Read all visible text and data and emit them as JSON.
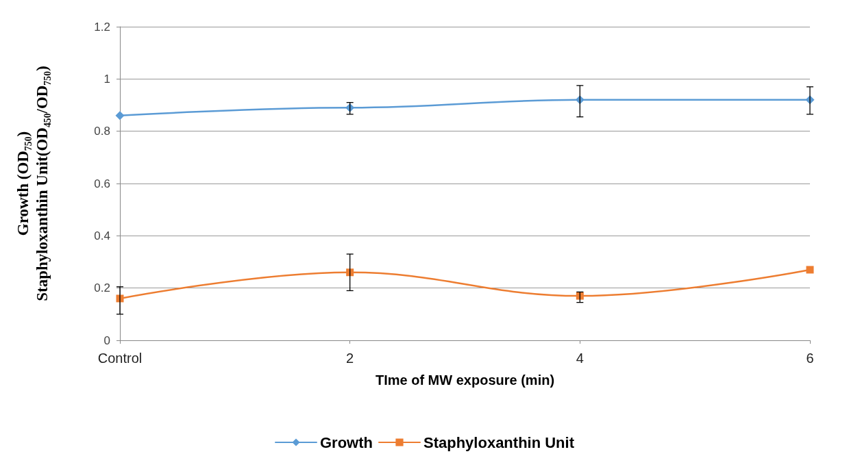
{
  "chart_data": {
    "type": "line",
    "xlabel": "TIme of MW exposure (min)",
    "ylabel": "Growth (OD₇₅₀)\nStaphyloxanthin Unit(OD₄₅₀/OD₇₅₀)",
    "categories": [
      "Control",
      "2",
      "4",
      "6"
    ],
    "series": [
      {
        "name": "Growth",
        "color": "#5b9bd5",
        "marker": "diamond",
        "values": [
          0.86,
          0.89,
          0.92,
          0.92
        ],
        "errors": [
          null,
          [
            0.865,
            0.91
          ],
          [
            0.855,
            0.975
          ],
          [
            0.865,
            0.97
          ]
        ]
      },
      {
        "name": "Staphyloxanthin Unit",
        "color": "#ed7d31",
        "marker": "square",
        "values": [
          0.16,
          0.26,
          0.17,
          0.27
        ],
        "errors": [
          [
            0.1,
            0.205
          ],
          [
            0.19,
            0.33
          ],
          [
            0.145,
            0.185
          ],
          null
        ]
      }
    ],
    "ylim": [
      0,
      1.2
    ],
    "yticks": [
      0,
      0.2,
      0.4,
      0.6,
      0.8,
      1,
      1.2
    ],
    "grid": "y",
    "legend": "bottom",
    "line_style": "solid"
  }
}
